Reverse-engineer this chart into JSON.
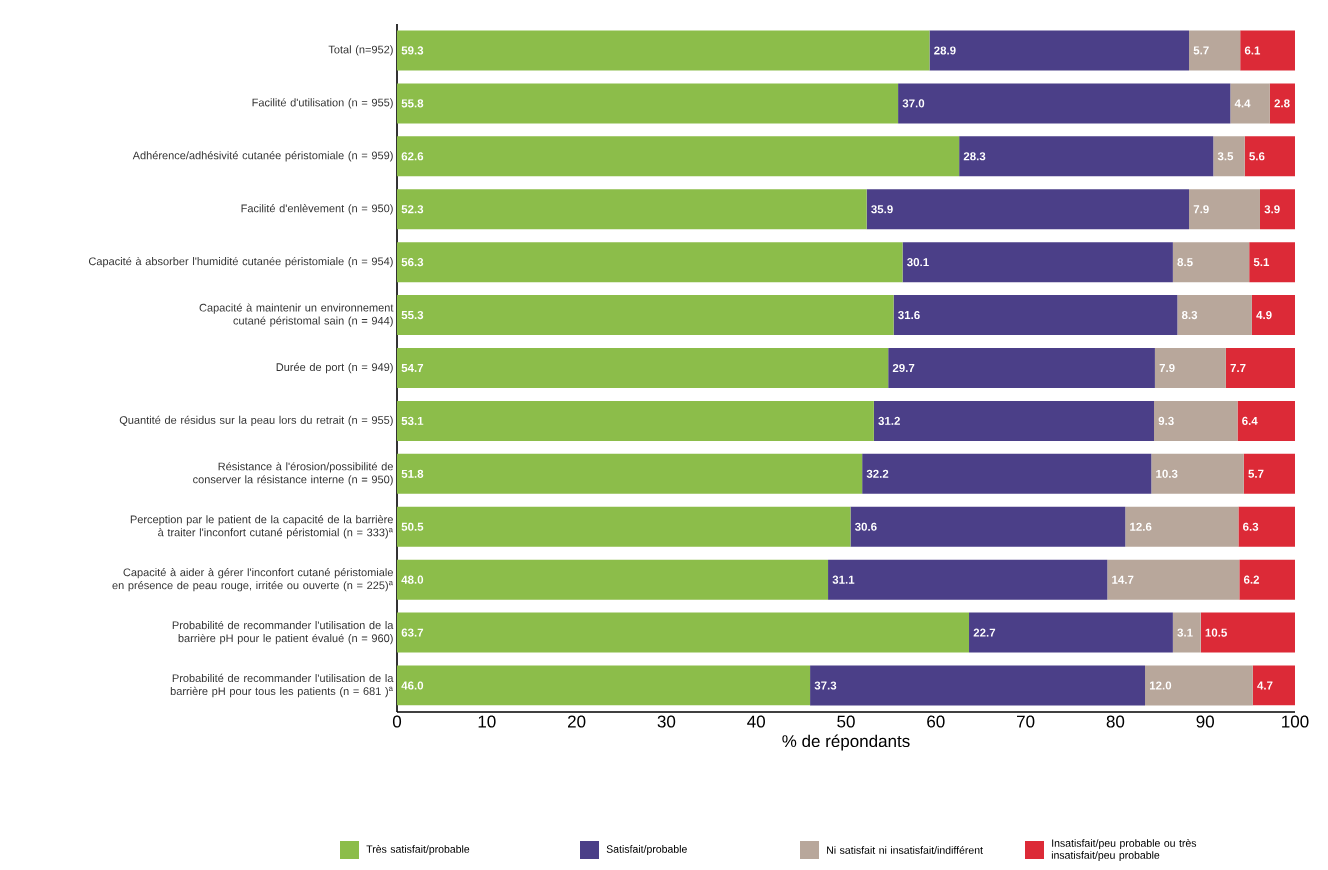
{
  "chart_data": {
    "type": "bar",
    "orientation": "horizontal",
    "stacked": true,
    "grid": false,
    "legend": "bottom",
    "xlabel": "% de répondants",
    "xlim": [
      0,
      100
    ],
    "xticks": [
      0,
      10,
      20,
      30,
      40,
      50,
      60,
      70,
      80,
      90,
      100
    ],
    "categories": [
      "Total (n=952)",
      "Facilité d'utilisation (n = 955)",
      "Adhérence/adhésivité cutanée péristomiale (n = 959)",
      "Facilité d'enlèvement (n = 950)",
      "Capacité à absorber l'humidité cutanée péristomiale (n = 954)",
      "Capacité à maintenir un environnement cutané péristomal sain (n = 944)",
      "Durée de port (n = 949)",
      "Quantité de résidus sur la peau lors du retrait (n = 955)",
      "Résistance à l'érosion/possibilité de conserver la résistance interne (n = 950)",
      "Perception par le patient de la capacité de la barrière à traiter l'inconfort cutané péristomial (n = 333)$^{a}$",
      "Capacité à aider à gérer l'inconfort cutané péristomiale en présence de peau rouge, irritée ou ouverte (n = 225)$^{a}$",
      "Probabilité de recommander l'utilisation de la barrière pH pour le patient évalué (n = 960)",
      "Probabilité de recommander l'utilisation de la barrière pH pour tous les patients (n = 681 )$^{a}$"
    ],
    "series": [
      {
        "name": "Très satisfait/probable",
        "color": "#8cbd4a",
        "values": [
          59.3,
          55.8,
          62.6,
          52.3,
          56.3,
          55.3,
          54.7,
          53.1,
          51.8,
          50.5,
          48.0,
          63.7,
          46.0
        ],
        "value_labels": [
          "59.3",
          "55.8",
          "62.6",
          "52.3",
          "56.3",
          "55.3",
          "54.7",
          "53.1",
          "51.8",
          "50.5",
          "48.0",
          "63.7",
          "46.0"
        ]
      },
      {
        "name": "Satisfait/probable",
        "color": "#4b3f88",
        "values": [
          28.9,
          37.0,
          28.3,
          35.9,
          30.1,
          31.6,
          29.7,
          31.2,
          32.2,
          30.6,
          31.1,
          22.7,
          37.3
        ],
        "value_labels": [
          "28.9",
          "37.0",
          "28.3",
          "35.9",
          "30.1",
          "31.6",
          "29.7",
          "31.2",
          "32.2",
          "30.6",
          "31.1",
          "22.7",
          "37.3"
        ]
      },
      {
        "name": "Ni satisfait ni insatisfait/indifférent",
        "color": "#b8a79b",
        "values": [
          5.7,
          4.4,
          3.5,
          7.9,
          8.5,
          8.3,
          7.9,
          9.3,
          10.3,
          12.6,
          14.7,
          3.1,
          12.0
        ],
        "value_labels": [
          "5.7",
          "4.4",
          "3.5",
          "7.9",
          "8.5",
          "8.3",
          "7.9",
          "9.3",
          "10.3",
          "12.6",
          "14.7",
          "3.1",
          "12.0"
        ]
      },
      {
        "name": "Insatisfait/peu probable ou très insatisfait/peu probable",
        "color": "#dc2a37",
        "values": [
          6.1,
          2.8,
          5.6,
          3.9,
          5.1,
          4.9,
          7.7,
          6.4,
          5.7,
          6.3,
          6.2,
          10.5,
          4.7
        ],
        "value_labels": [
          "6.1",
          "2.8",
          "5.6",
          "3.9",
          "5.1",
          "4.9",
          "7.7",
          "6.4",
          "5.7",
          "6.3",
          "6.2",
          "10.5",
          "4.7"
        ]
      }
    ]
  }
}
